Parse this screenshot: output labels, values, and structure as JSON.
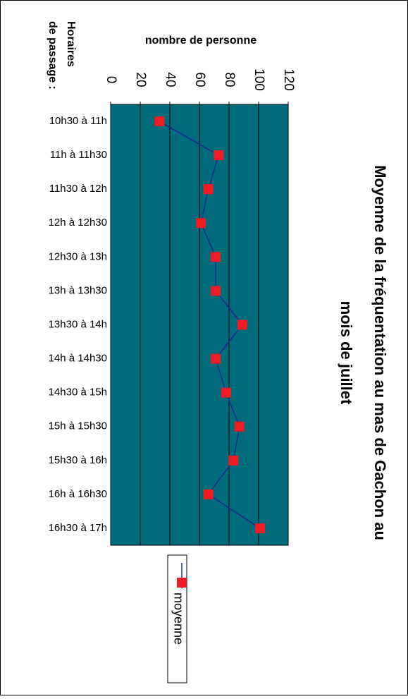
{
  "chart_data": {
    "type": "line",
    "title": [
      "Moyenne de la fréquentation au mas de Gachon au",
      "mois de juillet"
    ],
    "y_label": "nombre de personne",
    "x_label": [
      "Horaires",
      "de passage :"
    ],
    "categories": [
      "10h30 à 11h",
      "11h à 11h30",
      "11h30 à 12h",
      "12h à 12h30",
      "12h30 à 13h",
      "13h à 13h30",
      "13h30 à 14h",
      "14h à 14h30",
      "14h30 à 15h",
      "15h à 15h30",
      "15h30 à 16h",
      "16h à 16h30",
      "16h30 à 17h"
    ],
    "series": [
      {
        "name": "moyenne",
        "color": "#1c2a8c",
        "marker_color": "#ee1c24",
        "values": [
          33,
          73,
          66,
          61,
          71,
          71,
          89,
          71,
          78,
          87,
          83,
          66,
          101
        ]
      }
    ],
    "ylim": [
      0,
      120
    ],
    "yticks": [
      0,
      20,
      40,
      60,
      80,
      100,
      120
    ],
    "grid": true,
    "plot_color": "#006b7a"
  }
}
